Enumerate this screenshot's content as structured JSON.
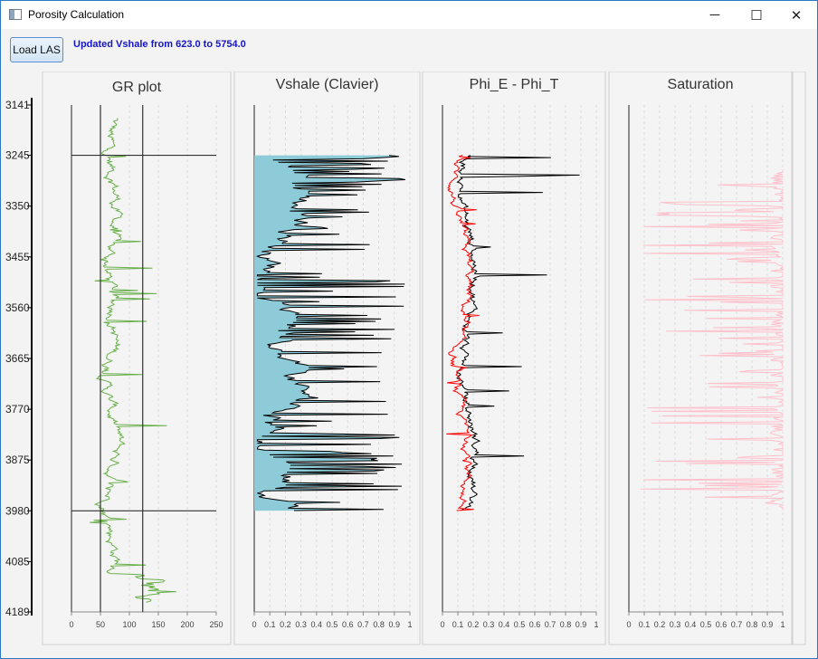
{
  "window": {
    "title": "Porosity Calculation",
    "controls": {
      "minimize": "─",
      "maximize": "☐",
      "close": "✕"
    },
    "icon": "app-window-icon"
  },
  "toolbar": {
    "load_label": "Load LAS",
    "status_text": "Updated Vshale from 623.0 to 5754.0"
  },
  "depth_axis": {
    "ticks": [
      3141,
      3245,
      3350,
      3455,
      3560,
      3665,
      3770,
      3875,
      3980,
      4085,
      4189
    ],
    "min": 3141,
    "max": 4189
  },
  "chart_data": [
    {
      "type": "line",
      "title": "GR plot",
      "xlim": [
        0,
        250
      ],
      "x_ticks": [
        "0",
        "50",
        "100",
        "150",
        "200",
        "250"
      ],
      "cutoff_lines_x": [
        50,
        123
      ],
      "zone_depths": [
        3245,
        3980
      ],
      "series": [
        {
          "color": "#6ab04c",
          "baseline": 70,
          "amplitude": 35,
          "spike": 120
        }
      ]
    },
    {
      "type": "area",
      "title": "Vshale (Clavier)",
      "xlim": [
        0,
        1
      ],
      "x_ticks": [
        "0",
        "0.1",
        "0.2",
        "0.3",
        "0.4",
        "0.5",
        "0.6",
        "0.7",
        "0.8",
        "0.9",
        "1"
      ],
      "depth_range": [
        3245,
        3980
      ],
      "series": [
        {
          "fill": "#8dcbd8",
          "line": "#000000"
        }
      ]
    },
    {
      "type": "line",
      "title": "Phi_E - Phi_T",
      "xlim": [
        0,
        1
      ],
      "x_ticks": [
        "0",
        "0.1",
        "0.2",
        "0.3",
        "0.4",
        "0.5",
        "0.6",
        "0.7",
        "0.8",
        "0.9",
        "1"
      ],
      "depth_range": [
        3245,
        3980
      ],
      "series": [
        {
          "color": "#000000",
          "baseline": 0.17
        },
        {
          "color": "#ff0000",
          "baseline": 0.12
        }
      ]
    },
    {
      "type": "line",
      "title": "Saturation",
      "xlim": [
        0,
        1
      ],
      "x_ticks": [
        "0",
        "0.1",
        "0.2",
        "0.3",
        "0.4",
        "0.5",
        "0.6",
        "0.7",
        "0.8",
        "0.9",
        "1"
      ],
      "depth_range": [
        3245,
        3980
      ],
      "series": [
        {
          "color": "#ffc0cb",
          "baseline": 1.0
        }
      ]
    }
  ]
}
